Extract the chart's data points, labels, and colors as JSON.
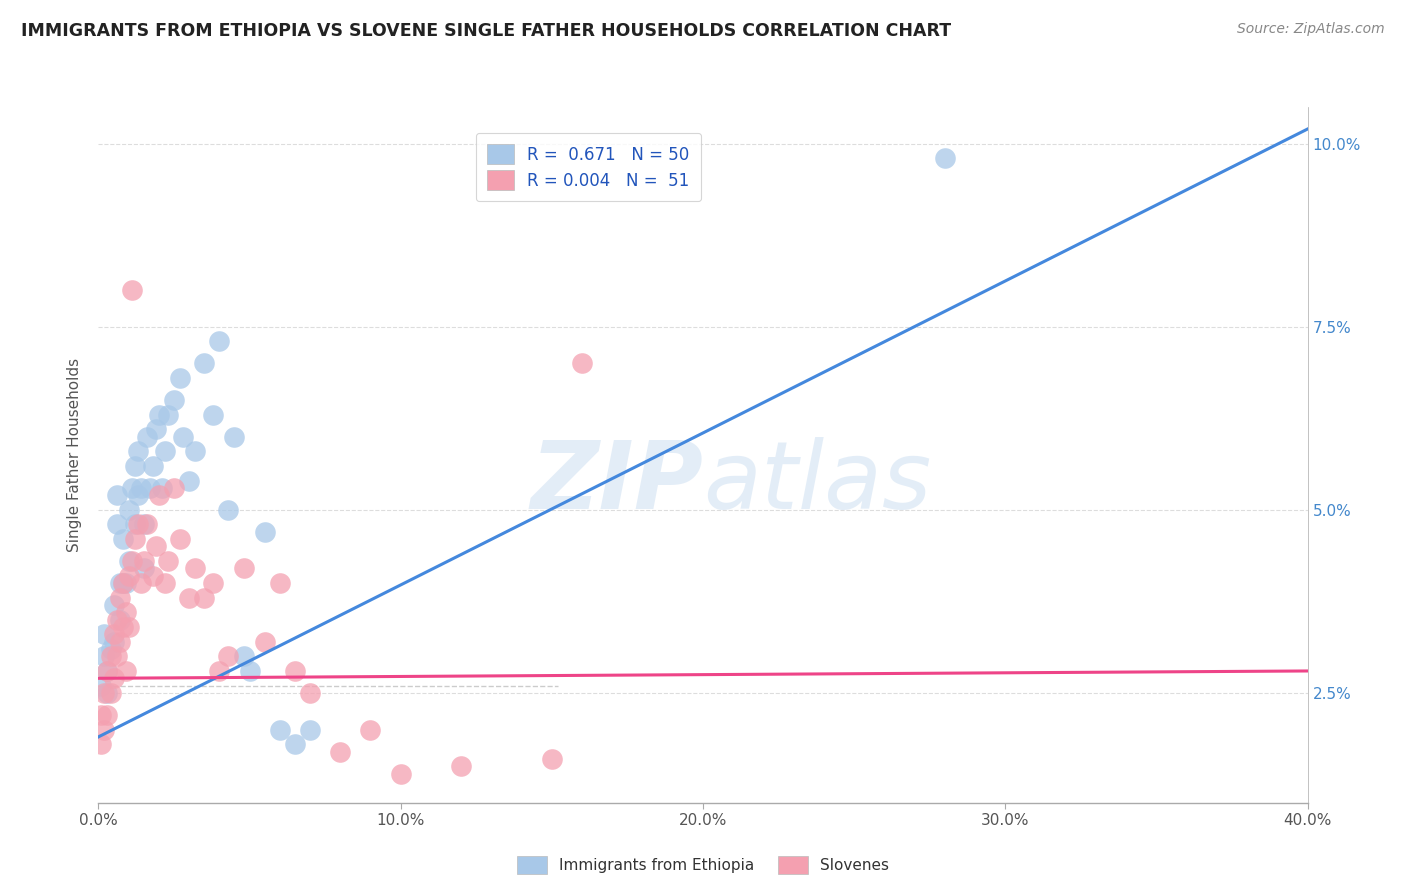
{
  "title": "IMMIGRANTS FROM ETHIOPIA VS SLOVENE SINGLE FATHER HOUSEHOLDS CORRELATION CHART",
  "source": "Source: ZipAtlas.com",
  "ylabel": "Single Father Households",
  "xlabel": "",
  "legend_label1": "Immigrants from Ethiopia",
  "legend_label2": "Slovenes",
  "R1": "0.671",
  "N1": "50",
  "R2": "0.004",
  "N2": "51",
  "color1": "#A8C8E8",
  "color2": "#F4A0B0",
  "line_color1": "#4488DD",
  "line_color2": "#EE4488",
  "watermark_zip": "ZIP",
  "watermark_atlas": "atlas",
  "xlim": [
    0.0,
    0.4
  ],
  "ylim": [
    0.01,
    0.105
  ],
  "xticks": [
    0.0,
    0.1,
    0.2,
    0.3,
    0.4
  ],
  "yticks": [
    0.025,
    0.05,
    0.075,
    0.1
  ],
  "grid_color": "#DDDDDD",
  "blue_scatter_x": [
    0.001,
    0.002,
    0.002,
    0.003,
    0.003,
    0.004,
    0.005,
    0.005,
    0.006,
    0.006,
    0.007,
    0.007,
    0.008,
    0.008,
    0.009,
    0.01,
    0.01,
    0.011,
    0.012,
    0.012,
    0.013,
    0.013,
    0.014,
    0.015,
    0.015,
    0.016,
    0.017,
    0.018,
    0.019,
    0.02,
    0.021,
    0.022,
    0.023,
    0.025,
    0.027,
    0.028,
    0.03,
    0.032,
    0.035,
    0.038,
    0.04,
    0.043,
    0.045,
    0.048,
    0.05,
    0.055,
    0.06,
    0.065,
    0.07,
    0.28
  ],
  "blue_scatter_y": [
    0.026,
    0.03,
    0.033,
    0.028,
    0.025,
    0.031,
    0.037,
    0.032,
    0.052,
    0.048,
    0.04,
    0.035,
    0.046,
    0.04,
    0.04,
    0.05,
    0.043,
    0.053,
    0.056,
    0.048,
    0.058,
    0.052,
    0.053,
    0.048,
    0.042,
    0.06,
    0.053,
    0.056,
    0.061,
    0.063,
    0.053,
    0.058,
    0.063,
    0.065,
    0.068,
    0.06,
    0.054,
    0.058,
    0.07,
    0.063,
    0.073,
    0.05,
    0.06,
    0.03,
    0.028,
    0.047,
    0.02,
    0.018,
    0.02,
    0.098
  ],
  "pink_scatter_x": [
    0.001,
    0.001,
    0.002,
    0.002,
    0.003,
    0.003,
    0.004,
    0.004,
    0.005,
    0.005,
    0.006,
    0.006,
    0.007,
    0.007,
    0.008,
    0.008,
    0.009,
    0.009,
    0.01,
    0.01,
    0.011,
    0.011,
    0.012,
    0.013,
    0.014,
    0.015,
    0.016,
    0.018,
    0.019,
    0.02,
    0.022,
    0.023,
    0.025,
    0.027,
    0.03,
    0.032,
    0.035,
    0.038,
    0.04,
    0.043,
    0.048,
    0.055,
    0.06,
    0.065,
    0.07,
    0.08,
    0.09,
    0.1,
    0.12,
    0.15,
    0.16
  ],
  "pink_scatter_y": [
    0.022,
    0.018,
    0.025,
    0.02,
    0.028,
    0.022,
    0.03,
    0.025,
    0.033,
    0.027,
    0.035,
    0.03,
    0.038,
    0.032,
    0.04,
    0.034,
    0.036,
    0.028,
    0.041,
    0.034,
    0.08,
    0.043,
    0.046,
    0.048,
    0.04,
    0.043,
    0.048,
    0.041,
    0.045,
    0.052,
    0.04,
    0.043,
    0.053,
    0.046,
    0.038,
    0.042,
    0.038,
    0.04,
    0.028,
    0.03,
    0.042,
    0.032,
    0.04,
    0.028,
    0.025,
    0.017,
    0.02,
    0.014,
    0.015,
    0.016,
    0.07
  ],
  "blue_line_x": [
    0.0,
    0.4
  ],
  "blue_line_y": [
    0.019,
    0.102
  ],
  "pink_line_x": [
    0.0,
    0.4
  ],
  "pink_line_y": [
    0.027,
    0.028
  ],
  "hline_y": 0.026,
  "hline_color": "#CCCCCC",
  "hline_style": "--"
}
